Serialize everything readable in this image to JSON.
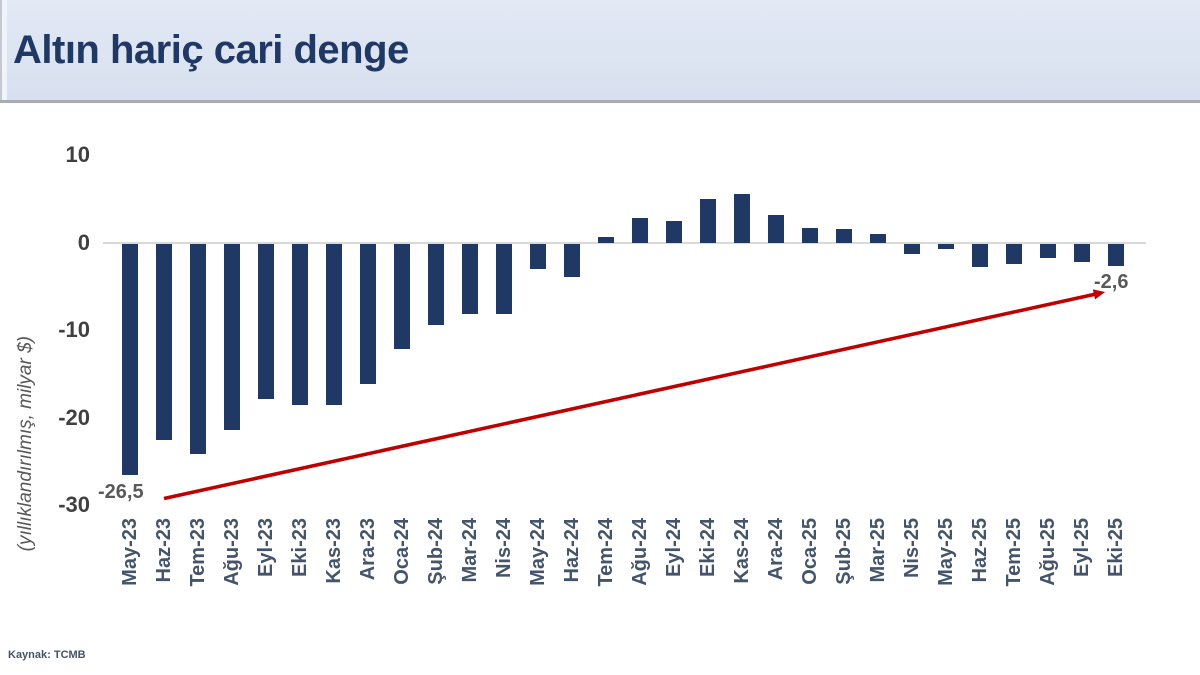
{
  "header": {
    "title": "Altın hariç cari denge"
  },
  "footer": {
    "source": "Kaynak: TCMB"
  },
  "chart_data": {
    "type": "bar",
    "title": "Altın hariç cari denge",
    "xlabel": "",
    "ylabel": "(yıllıklandırılmış, milyar $)",
    "unit": "milyar $",
    "categories": [
      "May-23",
      "Haz-23",
      "Tem-23",
      "Ağu-23",
      "Eyl-23",
      "Eki-23",
      "Kas-23",
      "Ara-23",
      "Oca-24",
      "Şub-24",
      "Mar-24",
      "Nis-24",
      "May-24",
      "Haz-24",
      "Tem-24",
      "Ağu-24",
      "Eyl-24",
      "Eki-24",
      "Kas-24",
      "Ara-24",
      "Oca-25",
      "Şub-25",
      "Mar-25",
      "Nis-25",
      "May-25",
      "Haz-25",
      "Tem-25",
      "Ağu-25",
      "Eyl-25",
      "Eki-25"
    ],
    "values": [
      -26.5,
      -22.5,
      -24.0,
      -21.3,
      -17.8,
      -18.5,
      -18.5,
      -16.0,
      -12.0,
      -9.3,
      -8.0,
      -8.0,
      -2.9,
      -3.8,
      0.6,
      2.8,
      2.5,
      5.0,
      5.5,
      3.2,
      1.7,
      1.5,
      1.0,
      -1.2,
      -0.6,
      -2.7,
      -2.3,
      -1.7,
      -2.1,
      -2.6
    ],
    "yticks": [
      {
        "label": "10",
        "value": 10
      },
      {
        "label": "0",
        "value": 0
      },
      {
        "label": "-10",
        "value": -10
      },
      {
        "label": "-20",
        "value": -20
      },
      {
        "label": "-30",
        "value": -30
      }
    ],
    "ylim": [
      -30,
      10
    ],
    "grid": "zero-line-only",
    "legend": "none",
    "bar_color": "#1f3864",
    "arrow_color": "#c00000",
    "annotations": {
      "start": {
        "text": "-26,5",
        "category": "May-23",
        "value": -26.5
      },
      "end": {
        "text": "-2,6",
        "category": "Eki-25",
        "value": -2.6
      }
    }
  }
}
